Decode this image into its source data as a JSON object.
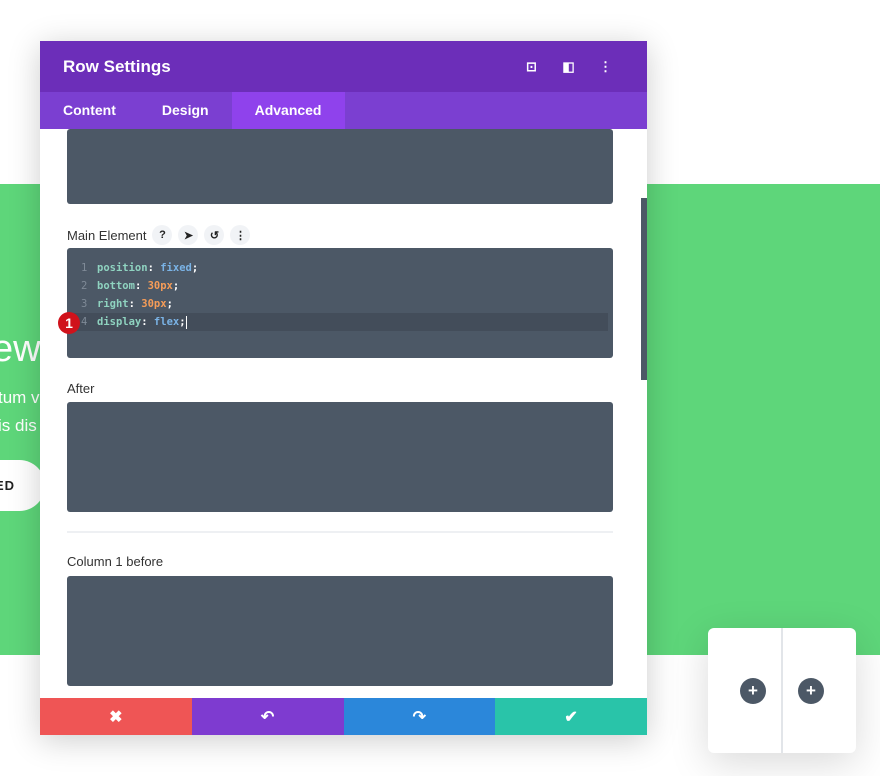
{
  "background": {
    "heading_fragment": "ew",
    "text_line1": "tum v",
    "text_line2": "is dis",
    "button_fragment": "ED",
    "accent": "#5ed67a"
  },
  "modal": {
    "title": "Row Settings",
    "header_icons": [
      "focus-icon",
      "sidebar-toggle-icon",
      "more-vertical-icon"
    ],
    "tabs": [
      {
        "label": "Content"
      },
      {
        "label": "Design"
      },
      {
        "label": "Advanced",
        "active": true
      }
    ],
    "main_element": {
      "label": "Main Element",
      "help": "?",
      "code": [
        {
          "n": "1",
          "prop": "position",
          "value": "fixed",
          "type": "kw"
        },
        {
          "n": "2",
          "prop": "bottom",
          "value": "30px",
          "type": "val"
        },
        {
          "n": "3",
          "prop": "right",
          "value": "30px",
          "type": "val"
        },
        {
          "n": "4",
          "prop": "display",
          "value": "flex",
          "type": "kw"
        }
      ],
      "step_badge": "1"
    },
    "after_label": "After",
    "column1_before_label": "Column 1 before",
    "footer": {
      "cancel": "✖",
      "undo": "↶",
      "redo": "↷",
      "save": "✔",
      "colors": [
        "#ef5555",
        "#7e3bd0",
        "#2b87da",
        "#29c4a9"
      ]
    }
  },
  "row_card": {
    "add_column_1": "+",
    "add_column_2": "+"
  }
}
